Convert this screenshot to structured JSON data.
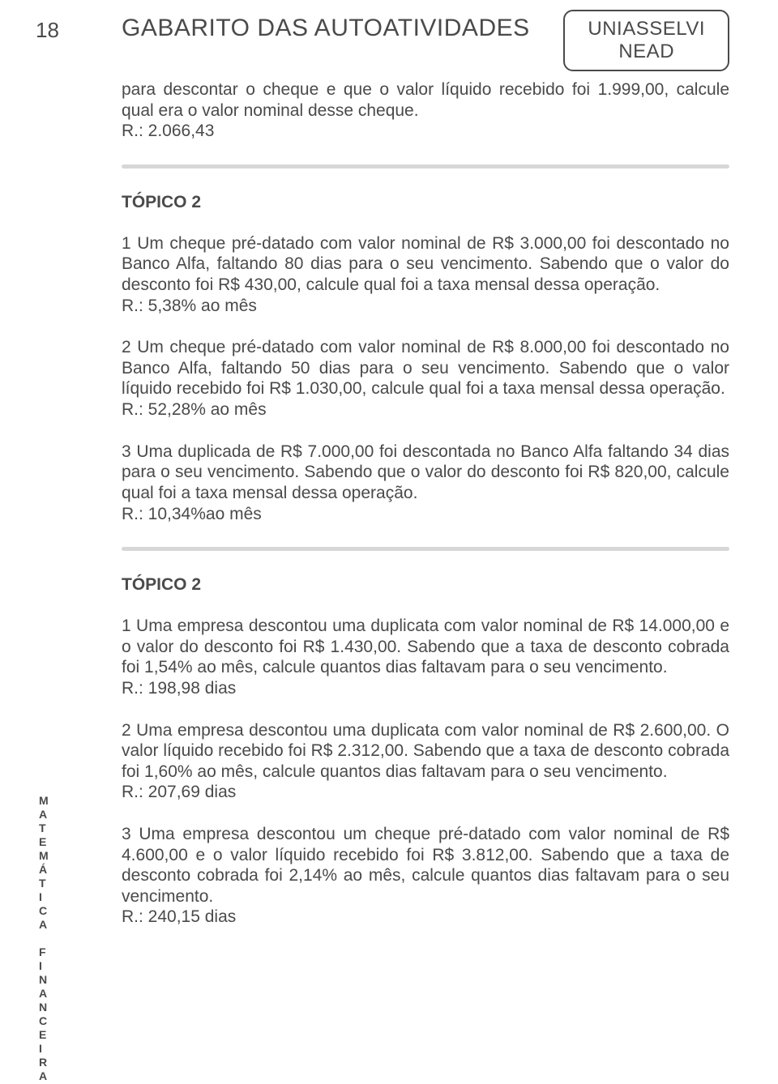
{
  "page_number": "18",
  "header_title": "GABARITO DAS AUTOATIVIDADES",
  "brand": {
    "top": "UNIASSELVI",
    "bottom": "NEAD"
  },
  "intro": {
    "text": "para descontar o cheque e que o valor líquido recebido foi 1.999,00, calcule qual era o valor nominal desse cheque.",
    "answer": "R.: 2.066,43"
  },
  "sections": [
    {
      "heading": "TÓPICO 2",
      "items": [
        {
          "text": "1 Um cheque pré-datado com valor nominal de R$ 3.000,00 foi descontado no Banco Alfa, faltando 80 dias para o seu vencimento. Sabendo que o valor do desconto foi R$ 430,00, calcule qual foi a taxa mensal dessa operação.",
          "answer": "R.: 5,38% ao mês"
        },
        {
          "text": "2 Um cheque pré-datado com valor nominal de R$ 8.000,00 foi descontado no Banco Alfa, faltando 50 dias para o seu vencimento. Sabendo que o valor líquido recebido foi R$ 1.030,00, calcule qual foi a taxa mensal dessa operação.",
          "answer": "R.: 52,28% ao mês"
        },
        {
          "text": "3 Uma duplicada de R$ 7.000,00 foi descontada no Banco Alfa faltando 34 dias para o seu vencimento. Sabendo que o valor do desconto foi R$ 820,00, calcule qual foi a taxa mensal dessa operação.",
          "answer": "R.: 10,34%ao mês"
        }
      ]
    },
    {
      "heading": "TÓPICO 2",
      "items": [
        {
          "text": "1 Uma empresa descontou uma duplicata com valor nominal de R$ 14.000,00 e o valor do desconto foi R$ 1.430,00. Sabendo que a taxa de desconto cobrada foi 1,54% ao mês, calcule quantos dias faltavam para o seu vencimento.",
          "answer": "R.: 198,98 dias"
        },
        {
          "text": "2 Uma empresa descontou uma duplicata com valor nominal de R$ 2.600,00. O valor líquido recebido foi R$ 2.312,00. Sabendo que a taxa de desconto cobrada foi 1,60% ao mês, calcule quantos dias faltavam para o seu vencimento.",
          "answer": "R.: 207,69 dias"
        },
        {
          "text": "3 Uma empresa descontou um cheque pré-datado com valor nominal de R$ 4.600,00 e o valor líquido recebido foi R$ 3.812,00. Sabendo que a taxa de desconto cobrada foi 2,14% ao mês, calcule quantos dias faltavam para o seu vencimento.",
          "answer": "R.: 240,15 dias"
        }
      ]
    }
  ],
  "side_label": [
    "M",
    "A",
    "T",
    "E",
    "M",
    "Á",
    "T",
    "I",
    "C",
    "A",
    "",
    "F",
    "I",
    "N",
    "A",
    "N",
    "C",
    "E",
    "I",
    "R",
    "A"
  ],
  "colors": {
    "text": "#4a4a4a",
    "divider": "#d7d7d7",
    "background": "#ffffff"
  }
}
